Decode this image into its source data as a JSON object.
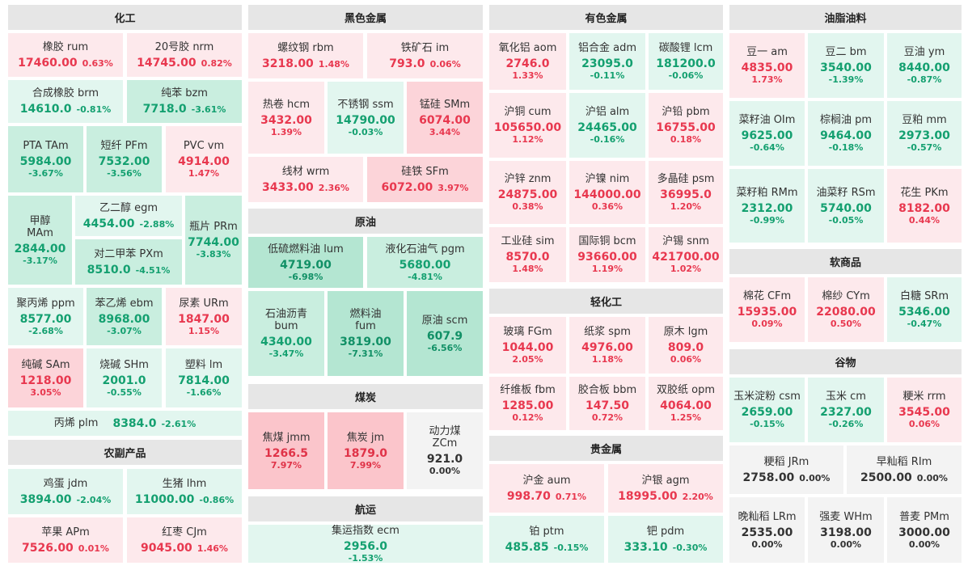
{
  "sections": {
    "chemical": "化工",
    "ferrous": "黑色金属",
    "nonferrous": "有色金属",
    "oils": "油脂油料",
    "crude": "原油",
    "coal": "煤炭",
    "shipping": "航运",
    "agri_products": "农副产品",
    "light_industry": "轻化工",
    "precious": "贵金属",
    "softs": "软商品",
    "grains": "谷物"
  },
  "tiles": [
    {
      "id": "rum",
      "section": "chemical",
      "name": "橡胶  rum",
      "price": "17460.00",
      "change": "0.63%",
      "trend": "up1"
    },
    {
      "id": "nrm",
      "section": "chemical",
      "name": "20号胶  nrm",
      "price": "14745.00",
      "change": "0.82%",
      "trend": "up1"
    },
    {
      "id": "brm",
      "section": "chemical",
      "name": "合成橡胶  brm",
      "price": "14610.0",
      "change": "-0.81%",
      "trend": "dn1"
    },
    {
      "id": "bzm",
      "section": "chemical",
      "name": "纯苯  bzm",
      "price": "7718.0",
      "change": "-3.61%",
      "trend": "dn2"
    },
    {
      "id": "TAm",
      "section": "chemical",
      "name": "PTA  TAm",
      "price": "5984.00",
      "change": "-3.67%",
      "trend": "dn2"
    },
    {
      "id": "PFm",
      "section": "chemical",
      "name": "短纤  PFm",
      "price": "7532.00",
      "change": "-3.56%",
      "trend": "dn2"
    },
    {
      "id": "vm",
      "section": "chemical",
      "name": "PVC  vm",
      "price": "4914.00",
      "change": "1.47%",
      "trend": "up1"
    },
    {
      "id": "MAm",
      "section": "chemical",
      "name": "甲醇 MAm",
      "price": "2844.00",
      "change": "-3.17%",
      "trend": "dn2"
    },
    {
      "id": "egm",
      "section": "chemical",
      "name": "乙二醇  egm",
      "price": "4454.00",
      "change": "-2.88%",
      "trend": "dn1"
    },
    {
      "id": "PRm",
      "section": "chemical",
      "name": "瓶片 PRm",
      "price": "7744.00",
      "change": "-3.83%",
      "trend": "dn2"
    },
    {
      "id": "PXm",
      "section": "chemical",
      "name": "对二甲苯  PXm",
      "price": "8510.0",
      "change": "-4.51%",
      "trend": "dn2"
    },
    {
      "id": "ppm",
      "section": "chemical",
      "name": "聚丙烯  ppm",
      "price": "8577.00",
      "change": "-2.68%",
      "trend": "dn1"
    },
    {
      "id": "ebm",
      "section": "chemical",
      "name": "苯乙烯  ebm",
      "price": "8968.00",
      "change": "-3.07%",
      "trend": "dn2"
    },
    {
      "id": "URm",
      "section": "chemical",
      "name": "尿素  URm",
      "price": "1847.00",
      "change": "1.15%",
      "trend": "up1"
    },
    {
      "id": "SAm",
      "section": "chemical",
      "name": "纯碱  SAm",
      "price": "1218.00",
      "change": "3.05%",
      "trend": "up2"
    },
    {
      "id": "SHm",
      "section": "chemical",
      "name": "烧碱  SHm",
      "price": "2001.0",
      "change": "-0.55%",
      "trend": "dn1"
    },
    {
      "id": "lm",
      "section": "chemical",
      "name": "塑料  lm",
      "price": "7814.00",
      "change": "-1.66%",
      "trend": "dn1"
    },
    {
      "id": "plm",
      "section": "chemical",
      "name": "丙烯  plm",
      "price": "8384.0",
      "change": "-2.61%",
      "trend": "dn1"
    },
    {
      "id": "jdm",
      "section": "agri_products",
      "name": "鸡蛋  jdm",
      "price": "3894.00",
      "change": "-2.04%",
      "trend": "dn1"
    },
    {
      "id": "lhm",
      "section": "agri_products",
      "name": "生猪  lhm",
      "price": "11000.00",
      "change": "-0.86%",
      "trend": "dn1"
    },
    {
      "id": "APm",
      "section": "agri_products",
      "name": "苹果  APm",
      "price": "7526.00",
      "change": "0.01%",
      "trend": "up1"
    },
    {
      "id": "CJm",
      "section": "agri_products",
      "name": "红枣  CJm",
      "price": "9045.00",
      "change": "1.46%",
      "trend": "up1"
    },
    {
      "id": "rbm",
      "section": "ferrous",
      "name": "螺纹钢  rbm",
      "price": "3218.00",
      "change": "1.48%",
      "trend": "up1"
    },
    {
      "id": "im",
      "section": "ferrous",
      "name": "铁矿石  im",
      "price": "793.0",
      "change": "0.06%",
      "trend": "up1"
    },
    {
      "id": "hcm",
      "section": "ferrous",
      "name": "热卷  hcm",
      "price": "3432.00",
      "change": "1.39%",
      "trend": "up1"
    },
    {
      "id": "ssm",
      "section": "ferrous",
      "name": "不锈钢  ssm",
      "price": "14790.00",
      "change": "-0.03%",
      "trend": "dn1"
    },
    {
      "id": "SMm",
      "section": "ferrous",
      "name": "锰硅  SMm",
      "price": "6074.00",
      "change": "3.44%",
      "trend": "up2"
    },
    {
      "id": "wrm",
      "section": "ferrous",
      "name": "线材  wrm",
      "price": "3433.00",
      "change": "2.36%",
      "trend": "up1"
    },
    {
      "id": "SFm",
      "section": "ferrous",
      "name": "硅铁  SFm",
      "price": "6072.00",
      "change": "3.97%",
      "trend": "up2"
    },
    {
      "id": "lum",
      "section": "crude",
      "name": "低硫燃料油  lum",
      "price": "4719.00",
      "change": "-6.98%",
      "trend": "dn3"
    },
    {
      "id": "pgm",
      "section": "crude",
      "name": "液化石油气  pgm",
      "price": "5680.00",
      "change": "-4.81%",
      "trend": "dn2"
    },
    {
      "id": "bum",
      "section": "crude",
      "name": "石油沥青 bum",
      "price": "4340.00",
      "change": "-3.47%",
      "trend": "dn2"
    },
    {
      "id": "fum",
      "section": "crude",
      "name": "燃料油 fum",
      "price": "3819.00",
      "change": "-7.31%",
      "trend": "dn3"
    },
    {
      "id": "scm",
      "section": "crude",
      "name": "原油 scm",
      "price": "607.9",
      "change": "-6.56%",
      "trend": "dn3"
    },
    {
      "id": "jmm",
      "section": "coal",
      "name": "焦煤 jmm",
      "price": "1266.5",
      "change": "7.97%",
      "trend": "up3"
    },
    {
      "id": "jm",
      "section": "coal",
      "name": "焦炭 jm",
      "price": "1879.0",
      "change": "7.99%",
      "trend": "up3"
    },
    {
      "id": "ZCm",
      "section": "coal",
      "name": "动力煤 ZCm",
      "price": "921.0",
      "change": "0.00%",
      "trend": "flat"
    },
    {
      "id": "ecm",
      "section": "shipping",
      "name": "集运指数  ecm",
      "price": "2956.0",
      "change": "-1.53%",
      "trend": "dn1"
    },
    {
      "id": "aom",
      "section": "nonferrous",
      "name": "氧化铝  aom",
      "price": "2746.0",
      "change": "1.33%",
      "trend": "up1"
    },
    {
      "id": "adm",
      "section": "nonferrous",
      "name": "铝合金  adm",
      "price": "23095.0",
      "change": "-0.11%",
      "trend": "dn1"
    },
    {
      "id": "lcm",
      "section": "nonferrous",
      "name": "碳酸锂  lcm",
      "price": "181200.0",
      "change": "-0.06%",
      "trend": "dn1"
    },
    {
      "id": "cum",
      "section": "nonferrous",
      "name": "沪铜  cum",
      "price": "105650.00",
      "change": "1.12%",
      "trend": "up1"
    },
    {
      "id": "alm",
      "section": "nonferrous",
      "name": "沪铝  alm",
      "price": "24465.00",
      "change": "-0.16%",
      "trend": "dn1"
    },
    {
      "id": "pbm",
      "section": "nonferrous",
      "name": "沪铅  pbm",
      "price": "16755.00",
      "change": "0.18%",
      "trend": "up1"
    },
    {
      "id": "znm",
      "section": "nonferrous",
      "name": "沪锌  znm",
      "price": "24875.00",
      "change": "0.38%",
      "trend": "up1"
    },
    {
      "id": "nim",
      "section": "nonferrous",
      "name": "沪镍  nim",
      "price": "144000.00",
      "change": "0.36%",
      "trend": "up1"
    },
    {
      "id": "psm",
      "section": "nonferrous",
      "name": "多晶硅  psm",
      "price": "36995.0",
      "change": "1.20%",
      "trend": "up1"
    },
    {
      "id": "sim",
      "section": "nonferrous",
      "name": "工业硅  sim",
      "price": "8570.0",
      "change": "1.48%",
      "trend": "up1"
    },
    {
      "id": "bcm",
      "section": "nonferrous",
      "name": "国际铜  bcm",
      "price": "93660.00",
      "change": "1.19%",
      "trend": "up1"
    },
    {
      "id": "snm",
      "section": "nonferrous",
      "name": "沪锡  snm",
      "price": "421700.00",
      "change": "1.02%",
      "trend": "up1"
    },
    {
      "id": "FGm",
      "section": "light_industry",
      "name": "玻璃  FGm",
      "price": "1044.00",
      "change": "2.05%",
      "trend": "up1"
    },
    {
      "id": "spm",
      "section": "light_industry",
      "name": "纸浆  spm",
      "price": "4976.00",
      "change": "1.18%",
      "trend": "up1"
    },
    {
      "id": "lgm",
      "section": "light_industry",
      "name": "原木  lgm",
      "price": "809.0",
      "change": "0.06%",
      "trend": "up1"
    },
    {
      "id": "fbm",
      "section": "light_industry",
      "name": "纤维板  fbm",
      "price": "1285.00",
      "change": "0.12%",
      "trend": "up1"
    },
    {
      "id": "bbm",
      "section": "light_industry",
      "name": "胶合板  bbm",
      "price": "147.50",
      "change": "0.72%",
      "trend": "up1"
    },
    {
      "id": "opm",
      "section": "light_industry",
      "name": "双胶纸  opm",
      "price": "4064.00",
      "change": "1.25%",
      "trend": "up1"
    },
    {
      "id": "aum",
      "section": "precious",
      "name": "沪金  aum",
      "price": "998.70",
      "change": "0.71%",
      "trend": "up1"
    },
    {
      "id": "agm",
      "section": "precious",
      "name": "沪银  agm",
      "price": "18995.00",
      "change": "2.20%",
      "trend": "up1"
    },
    {
      "id": "ptm",
      "section": "precious",
      "name": "铂  ptm",
      "price": "485.85",
      "change": "-0.15%",
      "trend": "dn1"
    },
    {
      "id": "pdm",
      "section": "precious",
      "name": "钯  pdm",
      "price": "333.10",
      "change": "-0.30%",
      "trend": "dn1"
    },
    {
      "id": "am",
      "section": "oils",
      "name": "豆一  am",
      "price": "4835.00",
      "change": "1.73%",
      "trend": "up1"
    },
    {
      "id": "bm",
      "section": "oils",
      "name": "豆二  bm",
      "price": "3540.00",
      "change": "-1.39%",
      "trend": "dn1"
    },
    {
      "id": "ym",
      "section": "oils",
      "name": "豆油  ym",
      "price": "8440.00",
      "change": "-0.87%",
      "trend": "dn1"
    },
    {
      "id": "OIm",
      "section": "oils",
      "name": "菜籽油  OIm",
      "price": "9625.00",
      "change": "-0.64%",
      "trend": "dn1"
    },
    {
      "id": "pm",
      "section": "oils",
      "name": "棕榈油  pm",
      "price": "9464.00",
      "change": "-0.18%",
      "trend": "dn1"
    },
    {
      "id": "mm",
      "section": "oils",
      "name": "豆粕  mm",
      "price": "2973.00",
      "change": "-0.57%",
      "trend": "dn1"
    },
    {
      "id": "RMm",
      "section": "oils",
      "name": "菜籽粕  RMm",
      "price": "2312.00",
      "change": "-0.99%",
      "trend": "dn1"
    },
    {
      "id": "RSm",
      "section": "oils",
      "name": "油菜籽  RSm",
      "price": "5740.00",
      "change": "-0.05%",
      "trend": "dn1"
    },
    {
      "id": "PKm",
      "section": "oils",
      "name": "花生  PKm",
      "price": "8182.00",
      "change": "0.44%",
      "trend": "up1"
    },
    {
      "id": "CFm",
      "section": "softs",
      "name": "棉花  CFm",
      "price": "15935.00",
      "change": "0.09%",
      "trend": "up1"
    },
    {
      "id": "CYm",
      "section": "softs",
      "name": "棉纱  CYm",
      "price": "22080.00",
      "change": "0.50%",
      "trend": "up1"
    },
    {
      "id": "SRm",
      "section": "softs",
      "name": "白糖  SRm",
      "price": "5346.00",
      "change": "-0.47%",
      "trend": "dn1"
    },
    {
      "id": "csm",
      "section": "grains",
      "name": "玉米淀粉  csm",
      "price": "2659.00",
      "change": "-0.15%",
      "trend": "dn1"
    },
    {
      "id": "cm",
      "section": "grains",
      "name": "玉米  cm",
      "price": "2327.00",
      "change": "-0.26%",
      "trend": "dn1"
    },
    {
      "id": "rrm",
      "section": "grains",
      "name": "粳米  rrm",
      "price": "3545.00",
      "change": "0.06%",
      "trend": "up1"
    },
    {
      "id": "JRm",
      "section": "grains",
      "name": "粳稻  JRm",
      "price": "2758.00",
      "change": "0.00%",
      "trend": "flat"
    },
    {
      "id": "RIm",
      "section": "grains",
      "name": "早籼稻  RIm",
      "price": "2500.00",
      "change": "0.00%",
      "trend": "flat"
    },
    {
      "id": "LRm",
      "section": "grains",
      "name": "晚籼稻  LRm",
      "price": "2535.00",
      "change": "0.00%",
      "trend": "flat"
    },
    {
      "id": "WHm",
      "section": "grains",
      "name": "强麦  WHm",
      "price": "3198.00",
      "change": "0.00%",
      "trend": "flat"
    },
    {
      "id": "PMm",
      "section": "grains",
      "name": "普麦  PMm",
      "price": "3000.00",
      "change": "0.00%",
      "trend": "flat"
    }
  ],
  "colors": {
    "up_text": "#e8384f",
    "down_text": "#14a070",
    "up_bg_light": "#fde9ec",
    "up_bg_strong": "#fbc5cb",
    "down_bg_light": "#e2f6ef",
    "down_bg_strong": "#b4e6d2",
    "header_bg": "#e6e6e6"
  }
}
